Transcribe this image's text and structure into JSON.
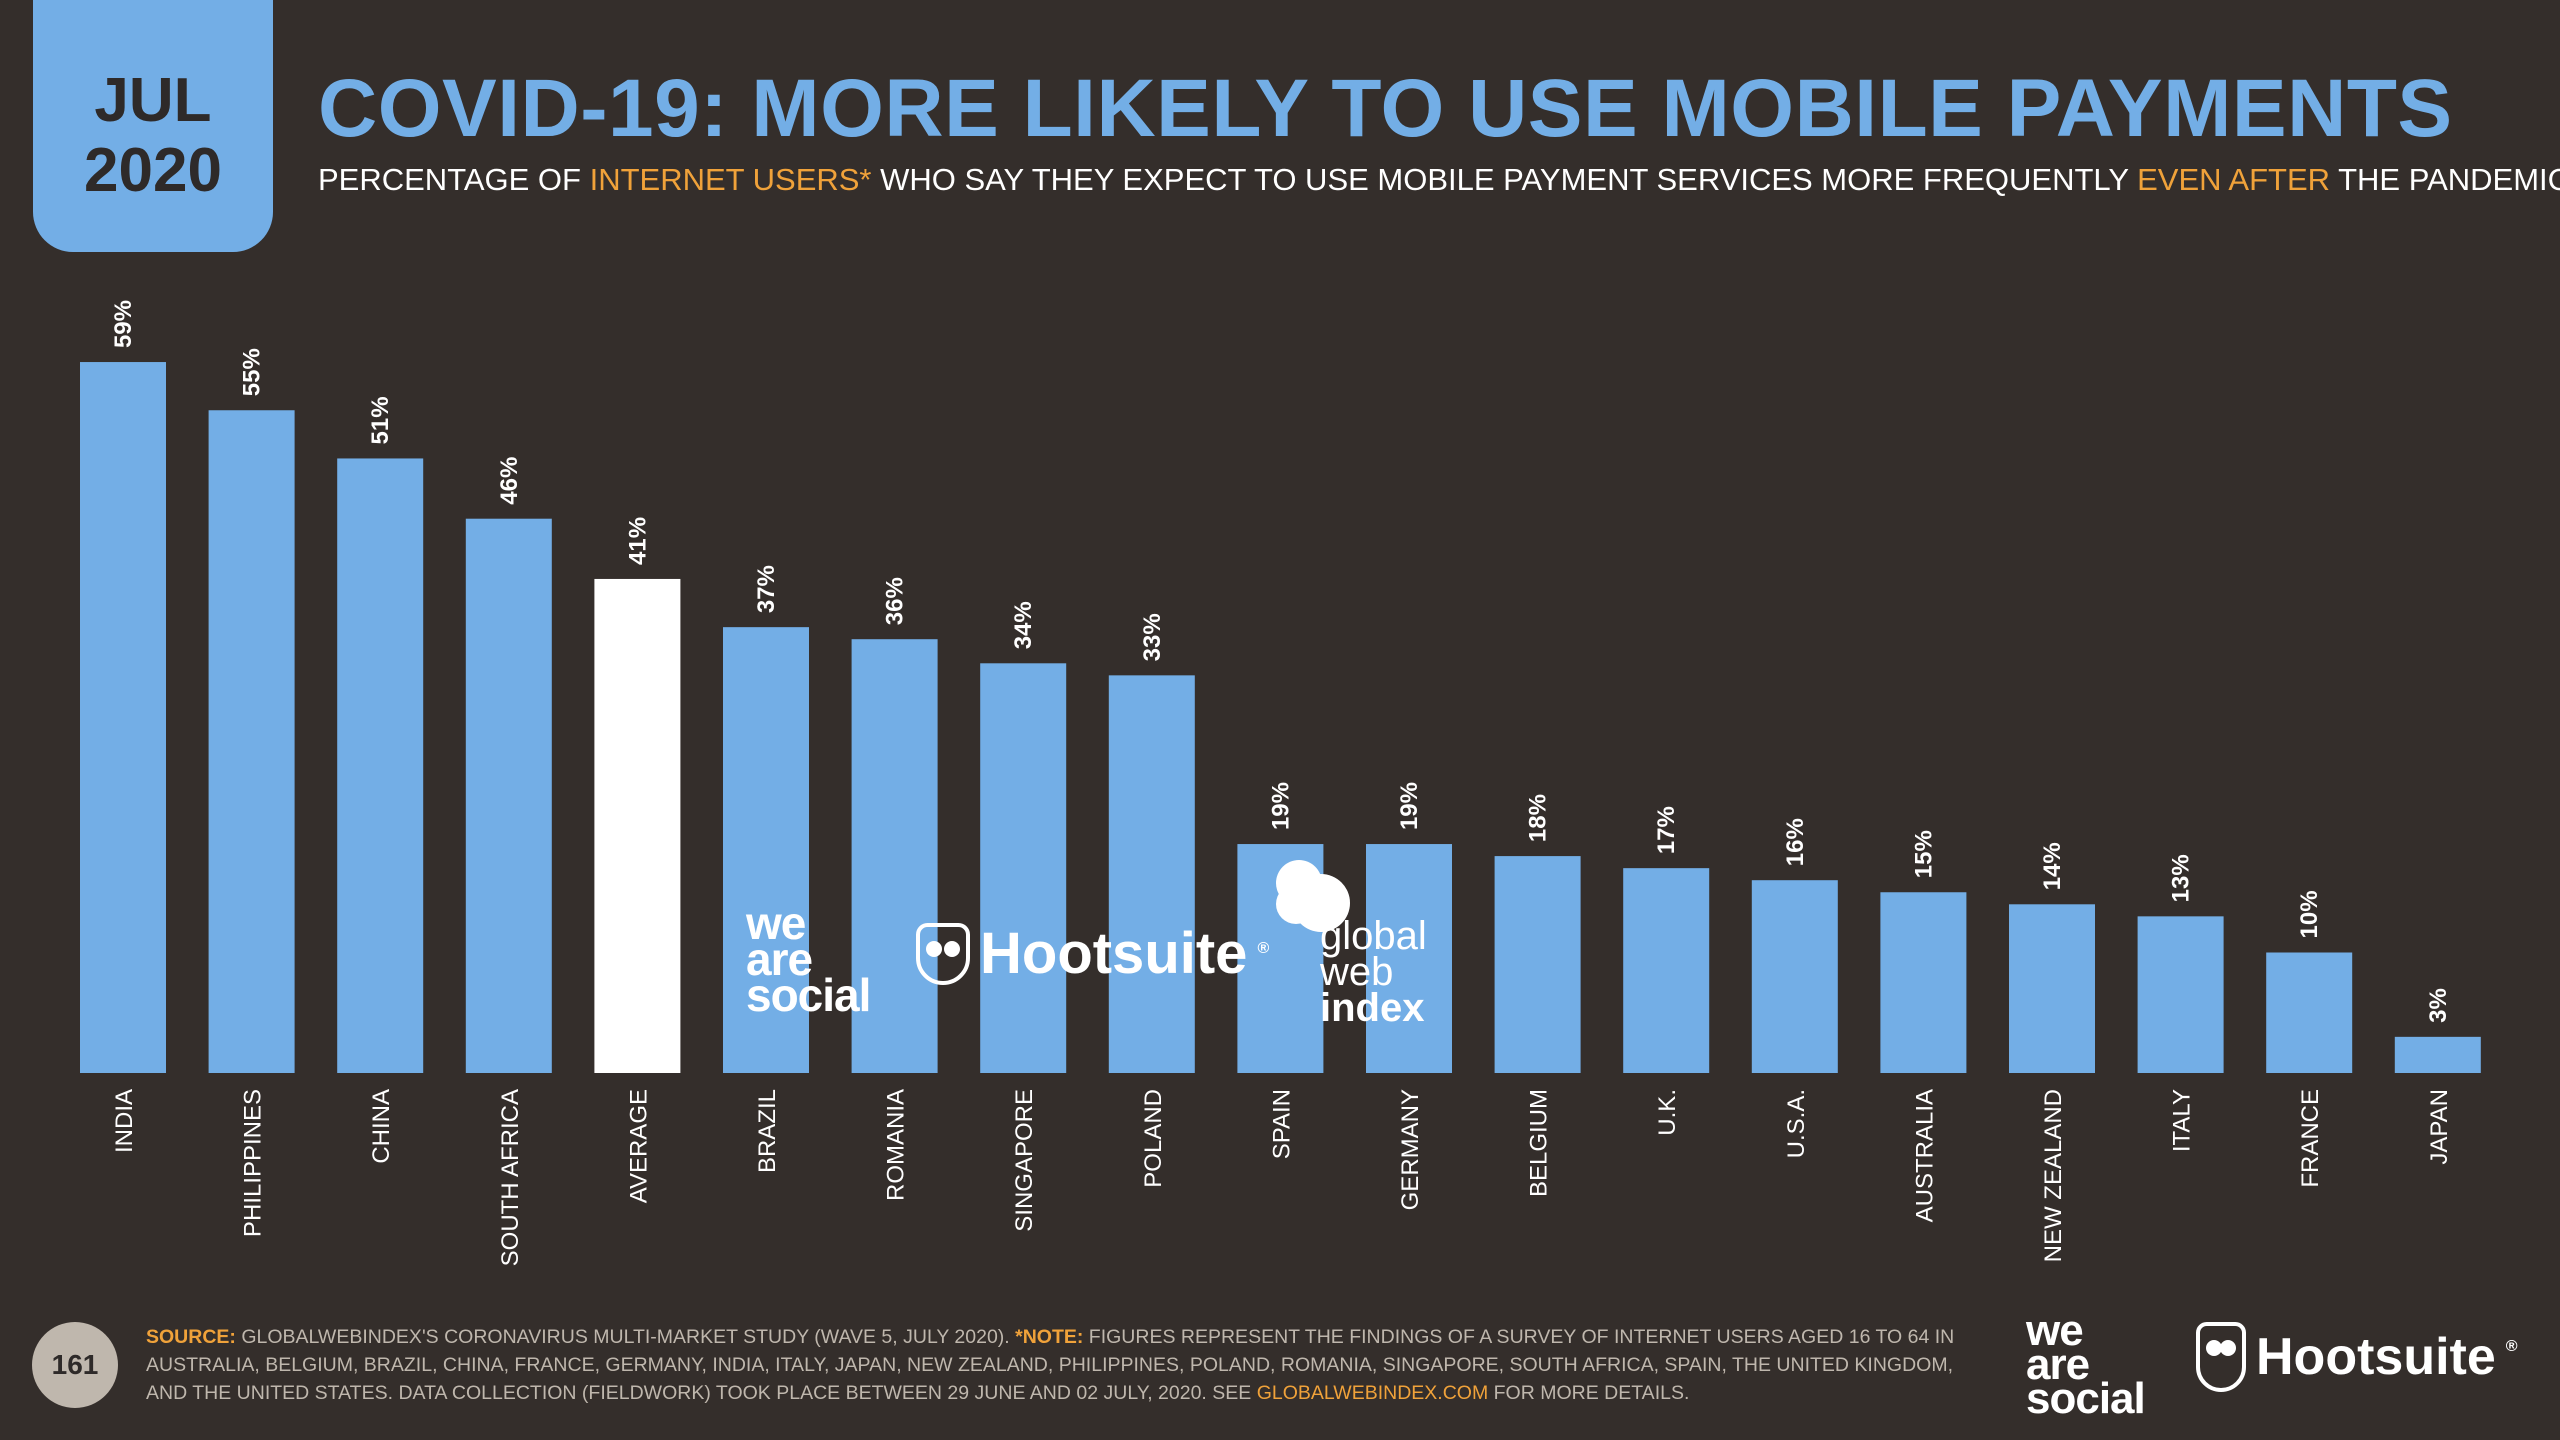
{
  "badge": {
    "month": "JUL",
    "year": "2020"
  },
  "title": "COVID-19: MORE LIKELY TO USE MOBILE PAYMENTS",
  "subtitle": {
    "part1": "PERCENTAGE OF ",
    "highlight1": "INTERNET USERS*",
    "part2": " WHO SAY THEY EXPECT TO USE MOBILE PAYMENT SERVICES MORE FREQUENTLY ",
    "highlight2": "EVEN AFTER",
    "part3": " THE PANDEMIC ENDS"
  },
  "chart_data": {
    "type": "bar",
    "categories": [
      "INDIA",
      "PHILIPPINES",
      "CHINA",
      "SOUTH AFRICA",
      "AVERAGE",
      "BRAZIL",
      "ROMANIA",
      "SINGAPORE",
      "POLAND",
      "SPAIN",
      "GERMANY",
      "BELGIUM",
      "U.K.",
      "U.S.A.",
      "AUSTRALIA",
      "NEW ZEALAND",
      "ITALY",
      "FRANCE",
      "JAPAN"
    ],
    "values": [
      59,
      55,
      51,
      46,
      41,
      37,
      36,
      34,
      33,
      19,
      19,
      18,
      17,
      16,
      15,
      14,
      13,
      10,
      3
    ],
    "labels": [
      "59%",
      "55%",
      "51%",
      "46%",
      "41%",
      "37%",
      "36%",
      "34%",
      "33%",
      "19%",
      "19%",
      "18%",
      "17%",
      "16%",
      "15%",
      "14%",
      "13%",
      "10%",
      "3%"
    ],
    "highlight_index": 4,
    "colors": {
      "bar": "#73aee6",
      "highlight": "#ffffff",
      "label": "#ffffff"
    }
  },
  "watermarks": {
    "we_are_social": [
      "we",
      "are",
      "social"
    ],
    "hootsuite": "Hootsuite",
    "registered": "®",
    "gwi": [
      "global",
      "web",
      "index"
    ]
  },
  "footer": {
    "page_number": "161",
    "source_label": "SOURCE:",
    "source_text": " GLOBALWEBINDEX'S CORONAVIRUS MULTI-MARKET STUDY (WAVE 5, JULY 2020). ",
    "note_label": "*NOTE:",
    "note_text": " FIGURES REPRESENT THE FINDINGS OF A SURVEY OF INTERNET USERS AGED 16 TO 64 IN AUSTRALIA, BELGIUM, BRAZIL, CHINA, FRANCE, GERMANY, INDIA, ITALY, JAPAN, NEW ZEALAND, PHILIPPINES, POLAND, ROMANIA, SINGAPORE, SOUTH AFRICA, SPAIN, THE UNITED KINGDOM, AND THE UNITED STATES. DATA COLLECTION (FIELDWORK) TOOK PLACE BETWEEN 29 JUNE AND 02 JULY, 2020. SEE ",
    "link": "GLOBALWEBINDEX.COM",
    "tail": " FOR MORE DETAILS."
  }
}
